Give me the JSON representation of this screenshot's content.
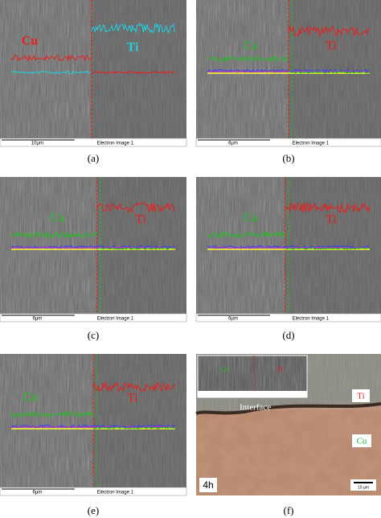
{
  "panels": [
    {
      "caption": "(a)",
      "cu": "Cu",
      "ti": "Ti",
      "scale": "10μm",
      "image_label": "Electron Image 1"
    },
    {
      "caption": "(b)",
      "cu": "Cu",
      "ti": "Ti",
      "scale": "6μm",
      "image_label": "Electron Image 1"
    },
    {
      "caption": "(c)",
      "cu": "Cu",
      "ti": "Ti",
      "scale": "6μm",
      "image_label": "Electron Image 1"
    },
    {
      "caption": "(d)",
      "cu": "Cu",
      "ti": "Ti",
      "scale": "6μm",
      "image_label": "Electron Image 1"
    },
    {
      "caption": "(e)",
      "cu": "Cu",
      "ti": "Ti",
      "scale": "6μm",
      "image_label": "Electron Image 1"
    },
    {
      "caption": "(f)",
      "cu": "Cu",
      "ti": "Ti",
      "interface": "Interface",
      "time": "4h",
      "scale": "10 μm"
    }
  ]
}
